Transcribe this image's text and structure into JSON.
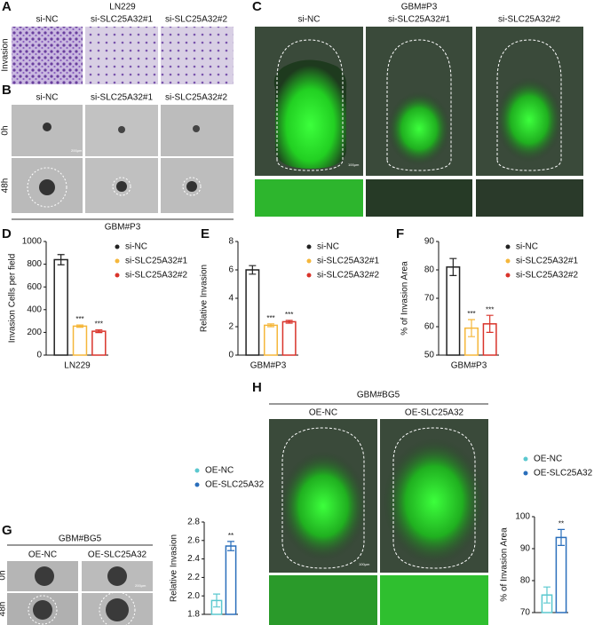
{
  "panels": {
    "A": {
      "label": "A",
      "title": "LN229",
      "columns": [
        "si-NC",
        "si-SLC25A32#1",
        "si-SLC25A32#2"
      ],
      "rows": [
        "Invasion"
      ]
    },
    "B": {
      "label": "B",
      "columns": [
        "si-NC",
        "si-SLC25A32#1",
        "si-SLC25A32#2"
      ],
      "rows": [
        "0h",
        "48h"
      ],
      "scale_bar": "200μm",
      "footer": "GBM#P3"
    },
    "C": {
      "label": "C",
      "title": "GBM#P3",
      "columns": [
        "si-NC",
        "si-SLC25A32#1",
        "si-SLC25A32#2"
      ],
      "scale_bar": "100μm"
    },
    "G": {
      "label": "G",
      "title": "GBM#BG5",
      "columns": [
        "OE-NC",
        "OE-SLC25A32"
      ],
      "rows": [
        "0h",
        "48h"
      ],
      "scale_bar": "200μm"
    },
    "H": {
      "label": "H",
      "title": "GBM#BG5",
      "columns": [
        "OE-NC",
        "OE-SLC25A32"
      ],
      "scale_bar": "100μm"
    }
  },
  "chart_data": [
    {
      "panel": "D",
      "type": "bar",
      "ylabel": "Invasion Cells per field",
      "xlabel": "LN229",
      "categories": [
        "si-NC",
        "si-SLC25A32#1",
        "si-SLC25A32#2"
      ],
      "colors": [
        "#222222",
        "#f5b73b",
        "#d9342b"
      ],
      "values": [
        840,
        255,
        210
      ],
      "errors": [
        45,
        10,
        12
      ],
      "annotations": [
        {
          "index": 1,
          "text": "***"
        },
        {
          "index": 2,
          "text": "***"
        }
      ],
      "ylim": [
        0,
        1000
      ],
      "yticks": [
        0,
        200,
        400,
        600,
        800,
        1000
      ]
    },
    {
      "panel": "E",
      "type": "bar",
      "ylabel": "Relative Invasion",
      "xlabel": "GBM#P3",
      "categories": [
        "si-NC",
        "si-SLC25A32#1",
        "si-SLC25A32#2"
      ],
      "colors": [
        "#222222",
        "#f5b73b",
        "#d9342b"
      ],
      "values": [
        6.0,
        2.1,
        2.35
      ],
      "errors": [
        0.3,
        0.1,
        0.1
      ],
      "annotations": [
        {
          "index": 1,
          "text": "***"
        },
        {
          "index": 2,
          "text": "***"
        }
      ],
      "ylim": [
        0,
        8
      ],
      "yticks": [
        0,
        2,
        4,
        6,
        8
      ]
    },
    {
      "panel": "F",
      "type": "bar",
      "ylabel": "% of Invasion Area",
      "xlabel": "GBM#P3",
      "categories": [
        "si-NC",
        "si-SLC25A32#1",
        "si-SLC25A32#2"
      ],
      "colors": [
        "#222222",
        "#f5b73b",
        "#d9342b"
      ],
      "values": [
        81,
        59.5,
        61
      ],
      "errors": [
        3,
        3,
        3
      ],
      "annotations": [
        {
          "index": 1,
          "text": "***"
        },
        {
          "index": 2,
          "text": "***"
        }
      ],
      "ylim": [
        50,
        90
      ],
      "yticks": [
        50,
        60,
        70,
        80,
        90
      ]
    },
    {
      "type": "bar",
      "ylabel": "Relative Invasion",
      "categories": [
        "OE-NC",
        "OE-SLC25A32"
      ],
      "colors": [
        "#5bc8cf",
        "#2a6ebb"
      ],
      "values": [
        1.95,
        2.54
      ],
      "errors": [
        0.07,
        0.05
      ],
      "annotations": [
        {
          "index": 1,
          "text": "**"
        }
      ],
      "ylim": [
        1.8,
        2.8
      ],
      "yticks": [
        1.8,
        {
          "value": 2,
          "label": "2.0"
        },
        2.2,
        2.4,
        2.6,
        2.8
      ]
    },
    {
      "type": "bar",
      "ylabel": "% of Invasion Area",
      "categories": [
        "OE-NC",
        "OE-SLC25A32"
      ],
      "colors": [
        "#5bc8cf",
        "#2a6ebb"
      ],
      "values": [
        75.5,
        93.5
      ],
      "errors": [
        2.5,
        2.5
      ],
      "annotations": [
        {
          "index": 1,
          "text": "**"
        }
      ],
      "ylim": [
        70,
        100
      ],
      "yticks": [
        70,
        80,
        90,
        100
      ]
    }
  ]
}
